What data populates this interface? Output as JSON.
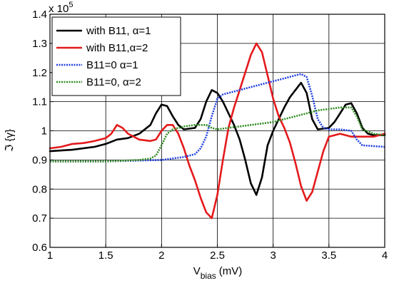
{
  "chart_data": {
    "type": "line",
    "xlabel_main": "V",
    "xlabel_sub": "bias",
    "xlabel_unit": "(mV)",
    "ylabel": "ℑ {γ}",
    "y_multiplier_base": "x 10",
    "y_multiplier_exp": "5",
    "xlim": [
      1,
      4
    ],
    "ylim": [
      0.6,
      1.4
    ],
    "xticks": [
      1,
      1.5,
      2,
      2.5,
      3,
      3.5,
      4
    ],
    "yticks": [
      0.6,
      0.7,
      0.8,
      0.9,
      1,
      1.1,
      1.2,
      1.3,
      1.4
    ],
    "grid": true,
    "legend_placement": "top-left",
    "series": [
      {
        "name": "with B11, α=1",
        "color": "#000000",
        "style": "solid",
        "x": [
          1.0,
          1.2,
          1.4,
          1.5,
          1.6,
          1.7,
          1.8,
          1.9,
          1.95,
          2.0,
          2.05,
          2.1,
          2.15,
          2.2,
          2.3,
          2.35,
          2.4,
          2.45,
          2.5,
          2.55,
          2.6,
          2.65,
          2.7,
          2.75,
          2.8,
          2.85,
          2.9,
          2.95,
          3.0,
          3.05,
          3.1,
          3.15,
          3.2,
          3.25,
          3.3,
          3.35,
          3.4,
          3.5,
          3.55,
          3.6,
          3.65,
          3.7,
          3.75,
          3.8,
          3.85,
          3.9,
          4.0
        ],
        "y": [
          0.93,
          0.935,
          0.945,
          0.955,
          0.97,
          0.975,
          0.99,
          1.02,
          1.06,
          1.09,
          1.085,
          1.05,
          1.02,
          1.005,
          1.01,
          1.04,
          1.1,
          1.14,
          1.13,
          1.1,
          1.06,
          1.02,
          0.97,
          0.9,
          0.82,
          0.78,
          0.84,
          0.95,
          1.0,
          1.04,
          1.08,
          1.115,
          1.14,
          1.165,
          1.13,
          1.04,
          1.005,
          1.01,
          1.03,
          1.06,
          1.09,
          1.095,
          1.06,
          1.01,
          0.99,
          0.985,
          0.985
        ]
      },
      {
        "name": "with B11,α=2",
        "color": "#e41a1c",
        "style": "solid",
        "x": [
          1.0,
          1.1,
          1.2,
          1.3,
          1.4,
          1.5,
          1.55,
          1.6,
          1.65,
          1.7,
          1.8,
          1.9,
          1.95,
          2.0,
          2.05,
          2.1,
          2.15,
          2.2,
          2.25,
          2.3,
          2.35,
          2.4,
          2.45,
          2.5,
          2.55,
          2.6,
          2.65,
          2.7,
          2.75,
          2.8,
          2.85,
          2.9,
          2.95,
          3.0,
          3.05,
          3.1,
          3.15,
          3.2,
          3.25,
          3.3,
          3.35,
          3.4,
          3.45,
          3.5,
          3.6,
          3.7,
          3.8,
          3.9,
          4.0
        ],
        "y": [
          0.94,
          0.945,
          0.955,
          0.958,
          0.965,
          0.975,
          0.99,
          1.02,
          1.01,
          0.99,
          0.97,
          0.965,
          0.97,
          1.0,
          1.02,
          1.02,
          0.99,
          0.94,
          0.88,
          0.83,
          0.77,
          0.72,
          0.7,
          0.78,
          0.9,
          1.01,
          1.08,
          1.14,
          1.2,
          1.26,
          1.3,
          1.27,
          1.19,
          1.11,
          1.05,
          1.01,
          0.96,
          0.89,
          0.81,
          0.76,
          0.79,
          0.86,
          0.93,
          0.98,
          0.99,
          0.98,
          0.98,
          0.98,
          0.99
        ]
      },
      {
        "name": "B11=0 α=1",
        "color": "#1f3fe0",
        "style": "dotted",
        "x": [
          1.0,
          1.5,
          2.0,
          2.2,
          2.3,
          2.35,
          2.4,
          2.45,
          2.5,
          2.55,
          2.6,
          2.7,
          2.8,
          2.9,
          3.0,
          3.1,
          3.2,
          3.25,
          3.3,
          3.35,
          3.4,
          3.45,
          3.5,
          3.6,
          3.7,
          3.75,
          3.8,
          4.0
        ],
        "y": [
          0.895,
          0.895,
          0.9,
          0.91,
          0.92,
          0.94,
          0.98,
          1.05,
          1.11,
          1.125,
          1.13,
          1.14,
          1.15,
          1.16,
          1.17,
          1.18,
          1.19,
          1.195,
          1.185,
          1.12,
          1.04,
          1.01,
          1.005,
          1.005,
          1.0,
          0.97,
          0.95,
          0.945
        ]
      },
      {
        "name": "B11=0, α=2",
        "color": "#2e8b1e",
        "style": "dotted",
        "x": [
          1.0,
          1.5,
          1.8,
          1.9,
          1.95,
          2.0,
          2.05,
          2.1,
          2.2,
          2.3,
          2.4,
          2.45,
          2.5,
          2.6,
          2.8,
          3.0,
          3.2,
          3.3,
          3.4,
          3.5,
          3.6,
          3.7,
          3.75,
          3.8,
          3.9,
          4.0
        ],
        "y": [
          0.895,
          0.895,
          0.9,
          0.905,
          0.915,
          0.95,
          0.99,
          1.005,
          1.015,
          1.02,
          1.02,
          1.01,
          1.005,
          1.01,
          1.02,
          1.03,
          1.05,
          1.06,
          1.07,
          1.075,
          1.08,
          1.08,
          1.05,
          1.005,
          0.99,
          0.985
        ]
      }
    ]
  }
}
